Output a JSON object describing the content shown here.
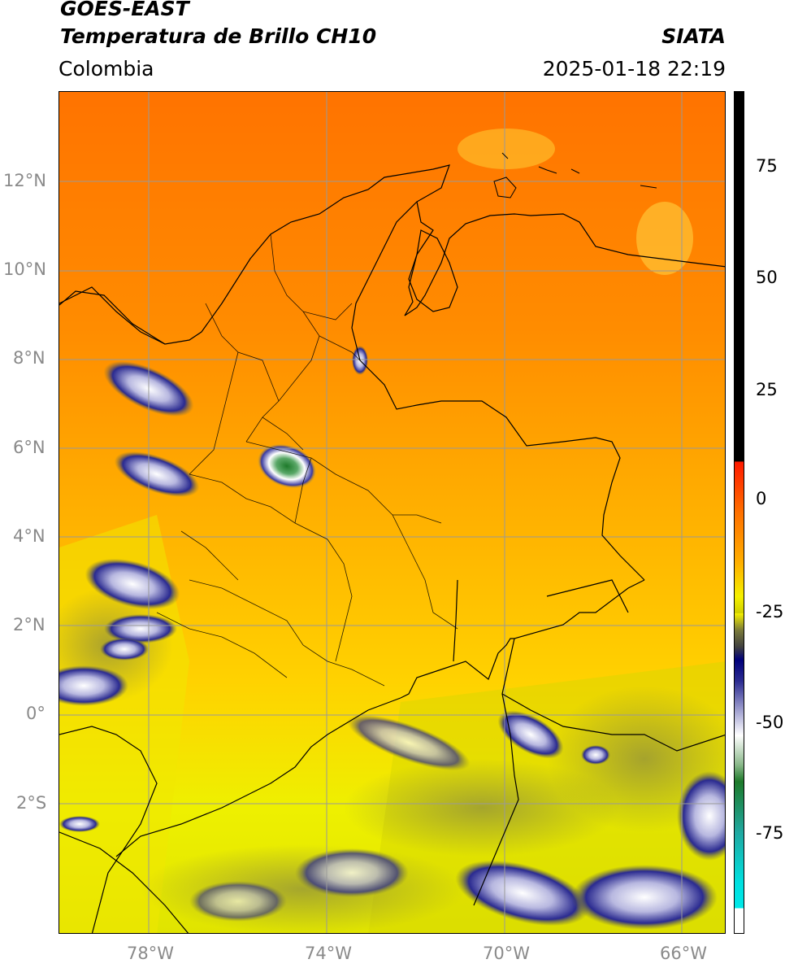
{
  "header": {
    "satellite": "GOES-EAST",
    "product": "Temperatura de Brillo CH10",
    "region": "Colombia",
    "agency": "SIATA",
    "datetime": "2025-01-18 22:19"
  },
  "map": {
    "lat_labels": [
      "12°N",
      "10°N",
      "8°N",
      "6°N",
      "4°N",
      "2°N",
      "0°",
      "2°S"
    ],
    "lon_labels": [
      "78°W",
      "74°W",
      "70°W",
      "66°W"
    ],
    "extent": {
      "lon_min": -80,
      "lon_max": -65,
      "lat_min": -4.9,
      "lat_max": 14
    }
  },
  "colorbar": {
    "ticks": [
      "75",
      "50",
      "25",
      "0",
      "-25",
      "-50",
      "-75"
    ],
    "range": [
      -95,
      90
    ],
    "colors": {
      "hot": "#000000",
      "warm": "#ff1a00",
      "orange": "#ff7a00",
      "yellow": "#f5f500",
      "olive": "#6e6e3c",
      "navy": "#00007a",
      "white": "#ffffff",
      "green": "#1e7a2a",
      "teal": "#20c8a0",
      "cyan": "#00e8e8"
    }
  }
}
